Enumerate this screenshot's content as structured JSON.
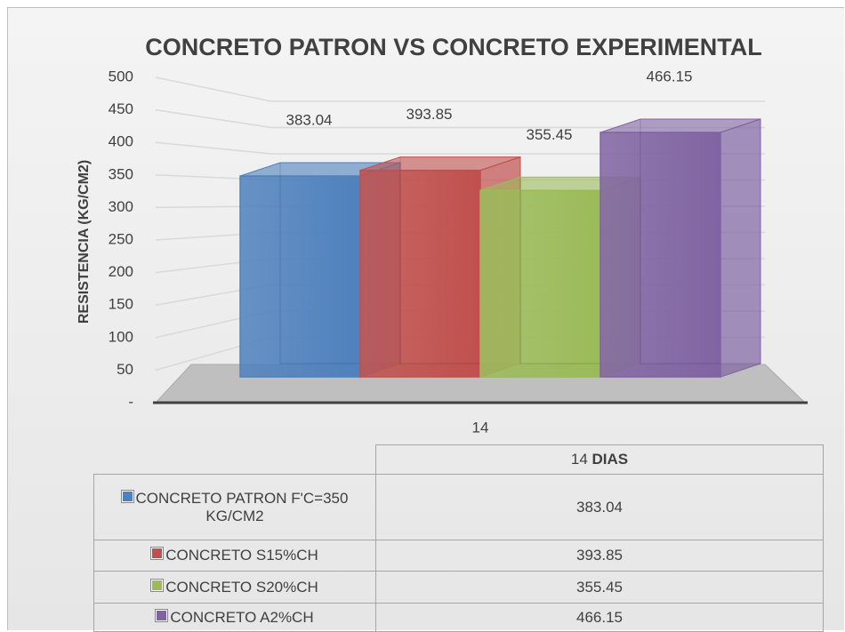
{
  "chart_data": {
    "type": "bar3d",
    "title": "CONCRETO PATRON VS CONCRETO EXPERIMENTAL",
    "y_label": "RESISTENCIA (KG/CM2)",
    "categories": [
      "14"
    ],
    "table_unit": "DIAS",
    "series": [
      {
        "name": "CONCRETO PATRON F'C=350 KG/CM2",
        "color": "#4f81bd",
        "values": [
          383.04
        ]
      },
      {
        "name": "CONCRETO S15%CH",
        "color": "#c0504d",
        "values": [
          393.85
        ]
      },
      {
        "name": "CONCRETO S20%CH",
        "color": "#9bbb59",
        "values": [
          355.45
        ]
      },
      {
        "name": "CONCRETO A2%CH",
        "color": "#8064a2",
        "values": [
          466.15
        ]
      }
    ],
    "ylim": [
      0,
      500
    ],
    "yticks": [
      {
        "value": 0,
        "label": "-"
      },
      50,
      100,
      150,
      200,
      250,
      300,
      350,
      400,
      450,
      500
    ],
    "grid": true
  }
}
